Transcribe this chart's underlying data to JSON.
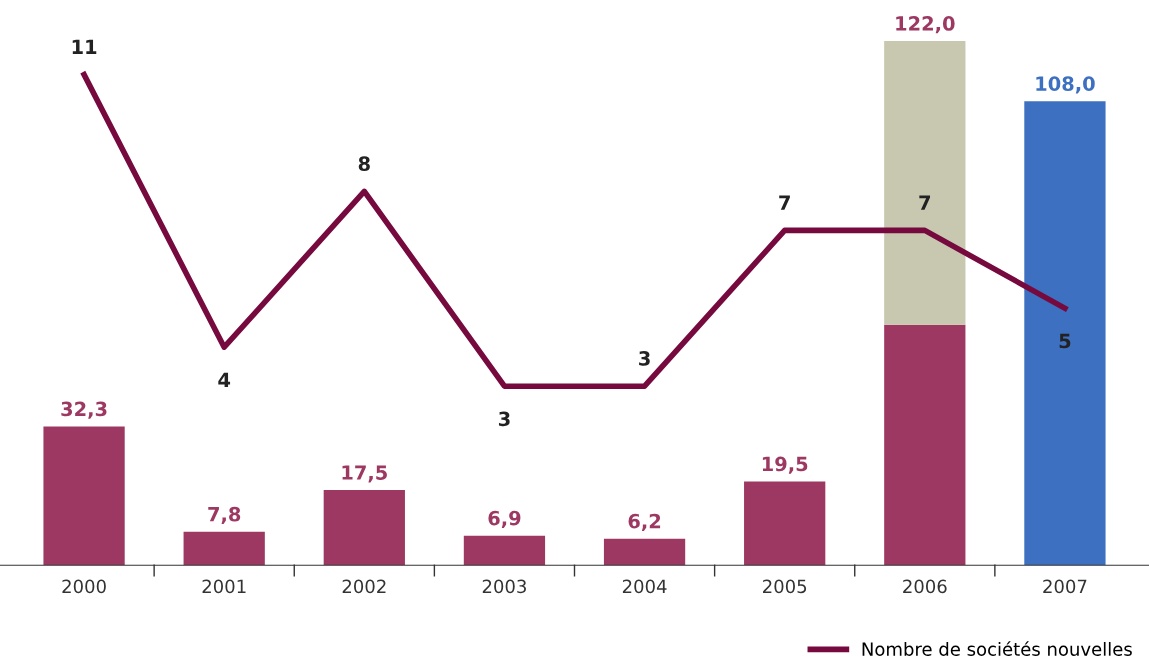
{
  "chart_data": {
    "type": "bar",
    "stacked": true,
    "categories": [
      "2000",
      "2001",
      "2002",
      "2003",
      "2004",
      "2005",
      "2006",
      "2007"
    ],
    "legend": "bottom",
    "tick_labels": "x",
    "series": [
      {
        "color": "#9c3862",
        "values": [
          32.3,
          7.8,
          17.5,
          6.9,
          6.2,
          19.5,
          56,
          null
        ],
        "value_labels": [
          "32,3",
          "7,8",
          "17,5",
          "6,9",
          "6,2",
          "19,5",
          null,
          null
        ]
      },
      {
        "color": "#c8c7b0",
        "values": [
          null,
          null,
          null,
          null,
          null,
          null,
          66,
          null
        ],
        "value_labels": [
          null,
          null,
          null,
          null,
          null,
          null,
          null,
          null
        ]
      },
      {
        "color": "#3d70c0",
        "values": [
          null,
          null,
          null,
          null,
          null,
          null,
          null,
          108
        ],
        "value_labels": [
          null,
          null,
          null,
          null,
          null,
          null,
          null,
          "108,0"
        ]
      },
      {
        "type": "line",
        "axis": "y2",
        "name": "Nombre de sociétés nouvelles",
        "color": "#760a3e",
        "values": [
          11,
          4,
          8,
          3,
          3,
          7,
          7,
          5
        ],
        "value_labels": [
          "11",
          "4",
          "8",
          "3",
          "3",
          "7",
          "7",
          "5"
        ]
      }
    ],
    "totals": [
      null,
      null,
      null,
      null,
      null,
      null,
      "122,0",
      null
    ]
  }
}
